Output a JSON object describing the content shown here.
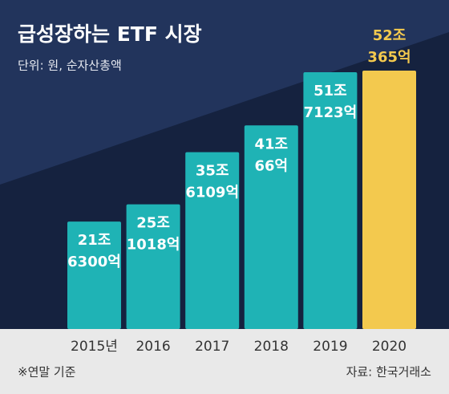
{
  "chart_data": {
    "type": "bar",
    "title": "급성장하는 ETF 시장",
    "subtitle": "단위: 원, 순자산총액",
    "categories": [
      "2015년",
      "2016",
      "2017",
      "2018",
      "2019",
      "2020"
    ],
    "values": [
      216300,
      251018,
      356109,
      410066,
      517123,
      520365
    ],
    "value_labels": [
      [
        "21조",
        "6300억"
      ],
      [
        "25조",
        "1018억"
      ],
      [
        "35조",
        "6109억"
      ],
      [
        "41조",
        "66억"
      ],
      [
        "51조",
        "7123억"
      ],
      [
        "52조",
        "365억"
      ]
    ],
    "colors": [
      "#1fb3b5",
      "#1fb3b5",
      "#1fb3b5",
      "#1fb3b5",
      "#1fb3b5",
      "#f3c94e"
    ],
    "note": "※연말 기준",
    "source": "자료: 한국거래소"
  }
}
